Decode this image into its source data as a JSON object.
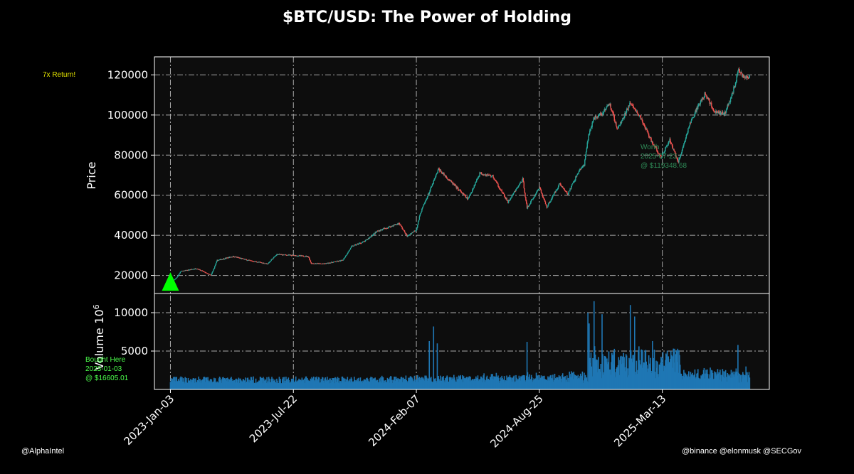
{
  "title": "$BTC/USD: The Power of Holding",
  "notes": {
    "return": "7x Return!",
    "watermark_left": "@AlphaIntel",
    "watermark_right": "@binance @elonmusk @SECGov",
    "buy": [
      "Bought Here",
      "2023-01-03",
      "@ $16605.01"
    ],
    "worth": [
      "Worth",
      "2025-07-23",
      "@ $119348.68"
    ]
  },
  "colors": {
    "up": "#26a69a",
    "down": "#ef5350",
    "volume": "#1f77b4",
    "marker": "#00ff00",
    "grid": "#aaaaaa",
    "panel": "#0d0d0d"
  },
  "chart_data": [
    {
      "type": "candlestick",
      "ylabel": "Price",
      "ylim": [
        11000,
        129000
      ],
      "yticks": [
        20000,
        40000,
        60000,
        80000,
        100000,
        120000
      ],
      "xlim": [
        "2022-12-08",
        "2025-09-03"
      ],
      "xticks": [
        "2023-Jan-03",
        "2023-Jul-22",
        "2024-Feb-07",
        "2024-Aug-25",
        "2025-Mar-13"
      ],
      "grid": true,
      "anchors": [
        [
          "2023-01-03",
          16605
        ],
        [
          "2023-01-12",
          18500
        ],
        [
          "2023-01-20",
          22000
        ],
        [
          "2023-02-15",
          23500
        ],
        [
          "2023-03-10",
          20000
        ],
        [
          "2023-03-20",
          27500
        ],
        [
          "2023-04-15",
          29500
        ],
        [
          "2023-05-10",
          27500
        ],
        [
          "2023-06-10",
          25800
        ],
        [
          "2023-06-25",
          30500
        ],
        [
          "2023-07-20",
          30000
        ],
        [
          "2023-08-15",
          29500
        ],
        [
          "2023-08-20",
          26000
        ],
        [
          "2023-09-10",
          25800
        ],
        [
          "2023-10-10",
          27500
        ],
        [
          "2023-10-25",
          34500
        ],
        [
          "2023-11-15",
          37000
        ],
        [
          "2023-12-05",
          42000
        ],
        [
          "2024-01-10",
          46000
        ],
        [
          "2024-01-23",
          39500
        ],
        [
          "2024-02-07",
          43000
        ],
        [
          "2024-02-14",
          51500
        ],
        [
          "2024-03-05",
          66000
        ],
        [
          "2024-03-14",
          73000
        ],
        [
          "2024-04-15",
          63000
        ],
        [
          "2024-05-01",
          58000
        ],
        [
          "2024-05-20",
          71000
        ],
        [
          "2024-06-10",
          69500
        ],
        [
          "2024-07-05",
          56500
        ],
        [
          "2024-07-29",
          68000
        ],
        [
          "2024-08-05",
          53500
        ],
        [
          "2024-08-25",
          64000
        ],
        [
          "2024-09-06",
          54000
        ],
        [
          "2024-09-27",
          65800
        ],
        [
          "2024-10-10",
          60500
        ],
        [
          "2024-10-29",
          72500
        ],
        [
          "2024-11-06",
          75000
        ],
        [
          "2024-11-13",
          90000
        ],
        [
          "2024-11-22",
          98500
        ],
        [
          "2024-12-05",
          101000
        ],
        [
          "2024-12-17",
          106000
        ],
        [
          "2024-12-30",
          93000
        ],
        [
          "2025-01-20",
          106000
        ],
        [
          "2025-02-03",
          100000
        ],
        [
          "2025-02-25",
          86000
        ],
        [
          "2025-03-11",
          79000
        ],
        [
          "2025-03-25",
          87500
        ],
        [
          "2025-04-08",
          76500
        ],
        [
          "2025-04-25",
          94000
        ],
        [
          "2025-05-08",
          103000
        ],
        [
          "2025-05-22",
          111000
        ],
        [
          "2025-06-05",
          102000
        ],
        [
          "2025-06-22",
          100500
        ],
        [
          "2025-07-03",
          109000
        ],
        [
          "2025-07-10",
          116000
        ],
        [
          "2025-07-14",
          122500
        ],
        [
          "2025-07-23",
          119348
        ]
      ]
    },
    {
      "type": "bar",
      "ylabel": "Volume",
      "yunit": "10^6",
      "ylim": [
        0,
        12500
      ],
      "yticks": [
        5000,
        10000
      ],
      "grid": true,
      "bar_spikes": [
        [
          "2024-02-28",
          6300
        ],
        [
          "2024-03-06",
          8200
        ],
        [
          "2024-03-12",
          6000
        ],
        [
          "2024-08-05",
          6200
        ],
        [
          "2024-11-12",
          10000
        ],
        [
          "2024-11-14",
          8600
        ],
        [
          "2024-11-22",
          11500
        ],
        [
          "2024-12-05",
          9800
        ],
        [
          "2025-01-20",
          11000
        ],
        [
          "2025-01-27",
          9500
        ],
        [
          "2025-02-25",
          6300
        ],
        [
          "2025-04-07",
          5300
        ],
        [
          "2025-07-14",
          5800
        ]
      ]
    }
  ]
}
